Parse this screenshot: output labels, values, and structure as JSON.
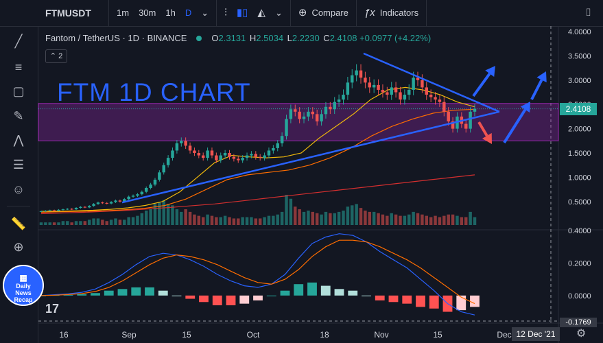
{
  "toolbar": {
    "symbol": "FTMUSDT",
    "intervals": [
      "1m",
      "30m",
      "1h",
      "D"
    ],
    "active_interval": "D",
    "compare_label": "Compare",
    "indicators_label": "Indicators"
  },
  "legend": {
    "pair": "Fantom / TetherUS · 1D · BINANCE",
    "o_label": "O",
    "o": "2.3131",
    "h_label": "H",
    "h": "2.5034",
    "l_label": "L",
    "l": "2.2230",
    "c_label": "C",
    "c": "2.4108",
    "change": "+0.0977 (+4.22%)",
    "collapse_count": "2"
  },
  "annotation": {
    "title": "FTM  1D CHART"
  },
  "badge": {
    "line1": "Daily",
    "line2": "News",
    "line3": "Recap"
  },
  "logo": "17",
  "price_tag": "2.4108",
  "crosshair_date": "12 Dec '21",
  "crosshair_price": "-0.1769",
  "colors": {
    "up": "#26a69a",
    "down": "#ef5350",
    "trendline": "#2962ff",
    "zone": "#9c27b0",
    "ma_fast": "#f0b90b",
    "ma_mid": "#ff6d00",
    "ma_slow": "#d32f2f"
  },
  "chart_data": [
    {
      "type": "candlestick",
      "title": "",
      "x_ticks": [
        "16",
        "Sep",
        "15",
        "Oct",
        "18",
        "Nov",
        "15",
        "Dec"
      ],
      "y_ticks": [
        "4.0000",
        "3.5000",
        "3.0000",
        "2.5000",
        "2.0000",
        "1.5000",
        "1.0000",
        "0.5000"
      ],
      "ylim": [
        0.0,
        4.0
      ],
      "close_approx": [
        0.3,
        0.31,
        0.32,
        0.31,
        0.33,
        0.34,
        0.35,
        0.34,
        0.37,
        0.39,
        0.38,
        0.41,
        0.45,
        0.48,
        0.47,
        0.46,
        0.49,
        0.52,
        0.5,
        0.55,
        0.6,
        0.62,
        0.65,
        0.7,
        0.78,
        0.85,
        0.95,
        1.1,
        1.25,
        1.4,
        1.55,
        1.7,
        1.75,
        1.65,
        1.55,
        1.5,
        1.45,
        1.4,
        1.55,
        1.45,
        1.35,
        1.45,
        1.5,
        1.42,
        1.38,
        1.35,
        1.4,
        1.45,
        1.48,
        1.42,
        1.4,
        1.45,
        1.55,
        1.6,
        1.7,
        1.85,
        2.2,
        2.4,
        2.35,
        2.2,
        2.25,
        2.35,
        2.3,
        2.15,
        2.3,
        2.45,
        2.4,
        2.55,
        2.6,
        2.7,
        2.95,
        3.1,
        3.2,
        3.05,
        2.95,
        2.85,
        2.9,
        2.8,
        2.75,
        2.7,
        2.85,
        2.75,
        2.6,
        2.7,
        2.8,
        3.05,
        3.0,
        2.85,
        2.7,
        2.65,
        2.6,
        2.55,
        2.35,
        2.15,
        2.0,
        2.25,
        2.1,
        2.0,
        2.35,
        2.41
      ],
      "moving_average_fast_approx": [
        0.3,
        0.3,
        0.31,
        0.32,
        0.34,
        0.37,
        0.42,
        0.5,
        0.7,
        1.0,
        1.3,
        1.45,
        1.42,
        1.4,
        1.42,
        1.5,
        1.8,
        2.05,
        2.3,
        2.6,
        2.8,
        2.85,
        2.8,
        2.7,
        2.55,
        2.45
      ],
      "moving_average_mid_approx": [
        0.28,
        0.29,
        0.3,
        0.31,
        0.33,
        0.36,
        0.42,
        0.55,
        0.75,
        0.95,
        1.05,
        1.1,
        1.15,
        1.25,
        1.4,
        1.6,
        1.85,
        2.05,
        2.2,
        2.32,
        2.38,
        2.4
      ],
      "moving_average_slow_approx": [
        0.25,
        0.28,
        0.32,
        0.38,
        0.45,
        0.55,
        0.65,
        0.75,
        0.85,
        0.95,
        1.05
      ],
      "zone": [
        1.75,
        2.52
      ],
      "volume_approx": [
        0.2,
        0.2,
        0.2,
        0.2,
        0.2,
        0.3,
        0.3,
        0.2,
        0.3,
        0.3,
        0.3,
        0.4,
        0.5,
        0.5,
        0.4,
        0.3,
        0.4,
        0.5,
        0.4,
        0.4,
        0.6,
        0.6,
        0.7,
        0.9,
        1.1,
        1.2,
        1.6,
        1.7,
        1.9,
        1.6,
        1.5,
        1.2,
        1.0,
        1.2,
        1.0,
        0.8,
        0.7,
        0.6,
        0.8,
        0.7,
        0.6,
        0.6,
        0.7,
        0.6,
        0.5,
        0.5,
        0.6,
        0.6,
        0.6,
        0.5,
        0.5,
        0.6,
        0.7,
        0.7,
        0.8,
        1.0,
        2.3,
        2.0,
        1.4,
        1.2,
        1.0,
        1.1,
        1.0,
        0.9,
        0.8,
        1.0,
        0.9,
        0.9,
        1.0,
        1.1,
        1.4,
        1.5,
        1.6,
        1.3,
        1.1,
        1.0,
        1.0,
        0.9,
        0.8,
        0.7,
        0.9,
        0.8,
        0.7,
        0.7,
        0.8,
        1.0,
        0.9,
        0.8,
        0.7,
        0.6,
        0.7,
        0.6,
        0.7,
        0.8,
        0.8,
        0.7,
        0.6,
        0.6,
        1.0,
        0.6
      ]
    },
    {
      "type": "bar",
      "title": "",
      "y_ticks": [
        "0.4000",
        "0.2000",
        "0.0000"
      ],
      "ylim": [
        -0.18,
        0.4
      ],
      "macd_line_approx": [
        0.0,
        0.005,
        0.01,
        0.02,
        0.04,
        0.08,
        0.13,
        0.19,
        0.24,
        0.26,
        0.25,
        0.22,
        0.18,
        0.13,
        0.09,
        0.06,
        0.05,
        0.07,
        0.13,
        0.23,
        0.32,
        0.36,
        0.38,
        0.37,
        0.33,
        0.27,
        0.22,
        0.17,
        0.1,
        0.03,
        -0.05,
        -0.1,
        -0.12
      ],
      "signal_line_approx": [
        0.0,
        0.002,
        0.006,
        0.012,
        0.025,
        0.05,
        0.09,
        0.14,
        0.19,
        0.23,
        0.25,
        0.24,
        0.22,
        0.19,
        0.15,
        0.11,
        0.08,
        0.07,
        0.1,
        0.16,
        0.24,
        0.3,
        0.34,
        0.34,
        0.33,
        0.3,
        0.26,
        0.22,
        0.17,
        0.11,
        0.05,
        -0.01,
        -0.05
      ],
      "histogram_approx": [
        0.0,
        0.003,
        0.004,
        0.008,
        0.015,
        0.03,
        0.04,
        0.05,
        0.05,
        0.03,
        0.0,
        -0.02,
        -0.04,
        -0.06,
        -0.06,
        -0.05,
        -0.03,
        0.0,
        0.03,
        0.07,
        0.08,
        0.06,
        0.04,
        0.03,
        0.0,
        -0.03,
        -0.04,
        -0.05,
        -0.07,
        -0.08,
        -0.1,
        -0.09,
        -0.07
      ]
    }
  ]
}
